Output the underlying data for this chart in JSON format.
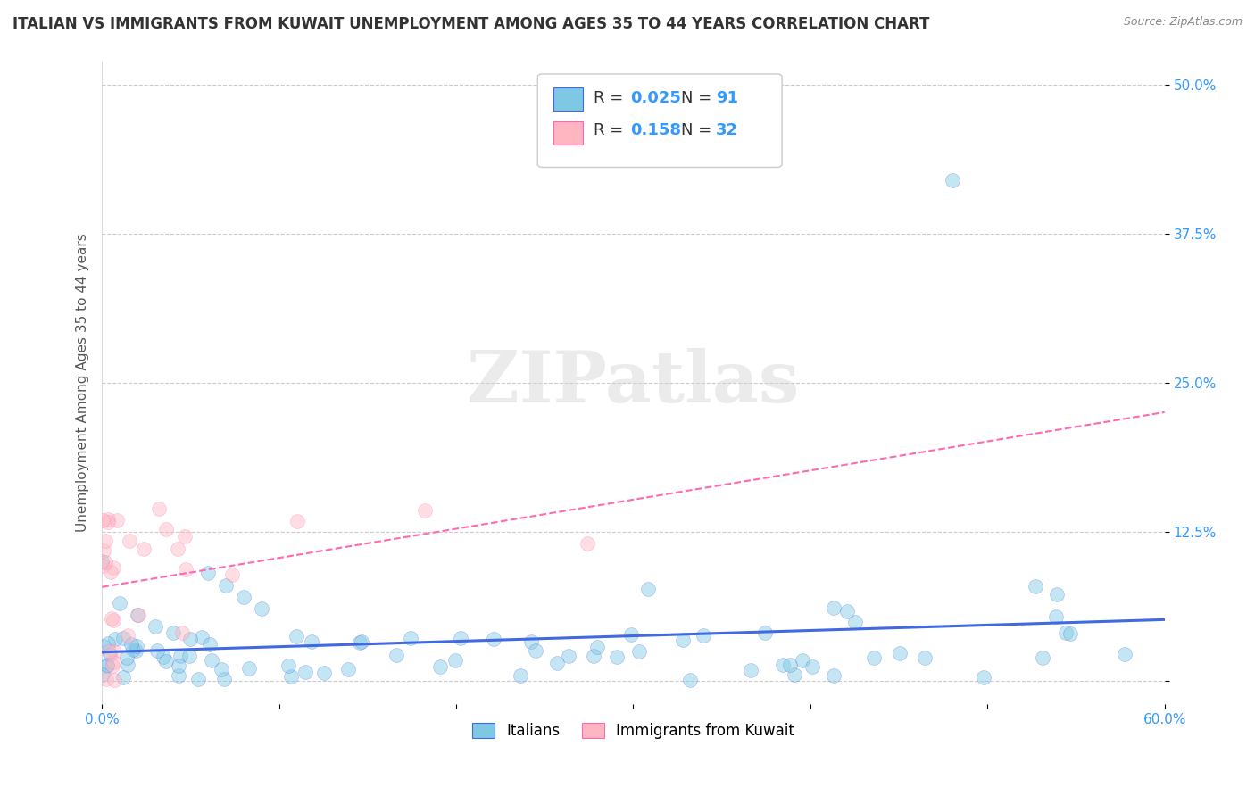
{
  "title": "ITALIAN VS IMMIGRANTS FROM KUWAIT UNEMPLOYMENT AMONG AGES 35 TO 44 YEARS CORRELATION CHART",
  "source": "Source: ZipAtlas.com",
  "ylabel": "Unemployment Among Ages 35 to 44 years",
  "xlim": [
    0.0,
    0.6
  ],
  "ylim": [
    -0.02,
    0.52
  ],
  "xticks": [
    0.0,
    0.1,
    0.2,
    0.3,
    0.4,
    0.5,
    0.6
  ],
  "xticklabels": [
    "0.0%",
    "",
    "",
    "",
    "",
    "",
    "60.0%"
  ],
  "yticks": [
    0.0,
    0.125,
    0.25,
    0.375,
    0.5
  ],
  "yticklabels": [
    "",
    "12.5%",
    "25.0%",
    "37.5%",
    "50.0%"
  ],
  "color_italian": "#7EC8E3",
  "color_kuwait": "#FFB6C1",
  "trend_color_italian": "#4169E1",
  "trend_color_kuwait": "#FF69B4",
  "background_color": "#ffffff",
  "grid_color": "#cccccc",
  "watermark": "ZIPatlas",
  "title_fontsize": 12,
  "axis_label_fontsize": 11,
  "tick_fontsize": 11,
  "legend_fontsize": 13
}
